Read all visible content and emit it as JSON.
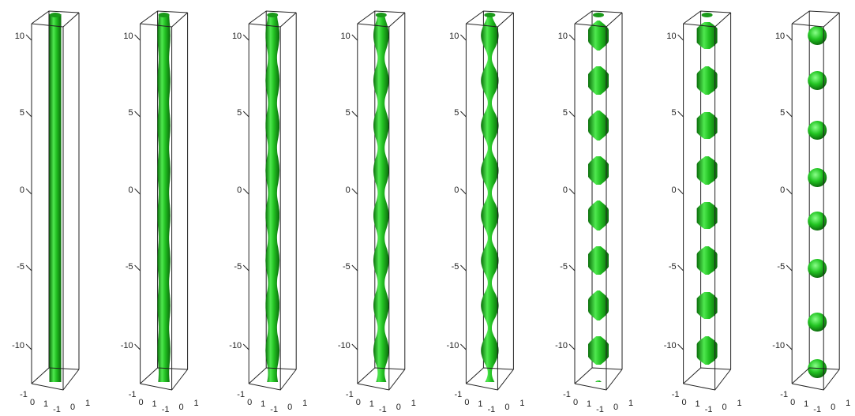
{
  "panels": [
    {
      "z_ticks": [
        "10",
        "5",
        "0",
        "-5",
        "-10"
      ],
      "x_ticks": [
        "-1",
        "0",
        "1"
      ],
      "y_ticks": [
        "-1",
        "0",
        "1"
      ]
    },
    {
      "z_ticks": [
        "10",
        "5",
        "0",
        "-5",
        "-10"
      ],
      "x_ticks": [
        "-1",
        "0",
        "1"
      ],
      "y_ticks": [
        "-1",
        "0",
        "1"
      ]
    },
    {
      "z_ticks": [
        "10",
        "5",
        "0",
        "-5",
        "-10"
      ],
      "x_ticks": [
        "-1",
        "0",
        "1"
      ],
      "y_ticks": [
        "-1",
        "0",
        "1"
      ]
    },
    {
      "z_ticks": [
        "10",
        "5",
        "0",
        "-5",
        "-10"
      ],
      "x_ticks": [
        "-1",
        "0",
        "1"
      ],
      "y_ticks": [
        "-1",
        "0",
        "1"
      ]
    },
    {
      "z_ticks": [
        "10",
        "5",
        "0",
        "-5",
        "-10"
      ],
      "x_ticks": [
        "-1",
        "0",
        "1"
      ],
      "y_ticks": [
        "-1",
        "0",
        "1"
      ]
    },
    {
      "z_ticks": [
        "10",
        "5",
        "0",
        "-5",
        "-10"
      ],
      "x_ticks": [
        "-1",
        "0",
        "1"
      ],
      "y_ticks": [
        "-1",
        "0",
        "1"
      ]
    },
    {
      "z_ticks": [
        "10",
        "5",
        "0",
        "-5",
        "-10"
      ],
      "x_ticks": [
        "-1",
        "0",
        "1"
      ],
      "y_ticks": [
        "-1",
        "0",
        "1"
      ]
    },
    {
      "z_ticks": [
        "10",
        "5",
        "0",
        "-5",
        "-10"
      ],
      "x_ticks": [
        "-1",
        "0",
        "1"
      ],
      "y_ticks": [
        "-1",
        "0",
        "1"
      ]
    }
  ]
}
